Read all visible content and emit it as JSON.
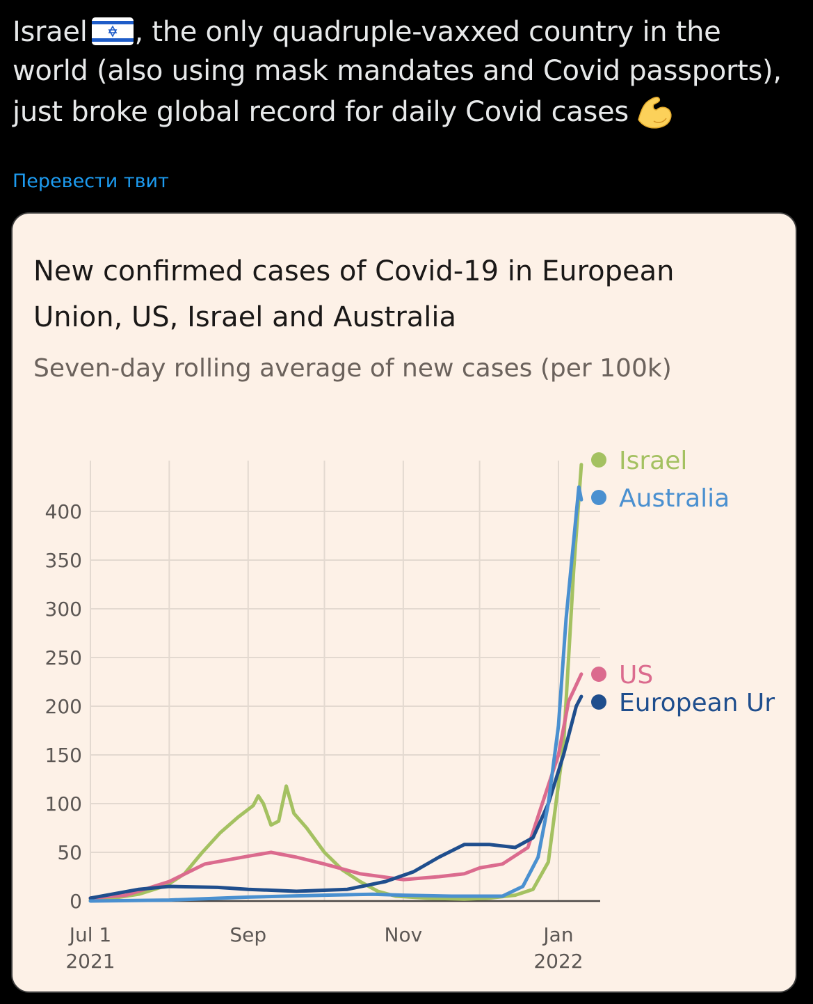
{
  "tweet": {
    "text_part1": "Israel",
    "flag_icon": "israel-flag-icon",
    "text_part2": ", the only quadruple-vaxxed country in the world (also using mask mandates and Covid passports), just broke global record for daily Covid cases",
    "emoji_icon": "flexed-biceps-icon",
    "translate_label": "Перевести твит"
  },
  "chart_data": {
    "type": "line",
    "title_line1": "New confirmed cases of Covid-19 in European",
    "title_line2": "Union, US, Israel and Australia",
    "subtitle": "Seven-day rolling average of new cases (per 100k)",
    "ylim": [
      0,
      450
    ],
    "yticks": [
      "400",
      "350",
      "300",
      "250",
      "200",
      "150",
      "100",
      "50",
      "0"
    ],
    "xticks": [
      {
        "label": "Jul 1",
        "label2": "2021",
        "x": "2021-07-01"
      },
      {
        "label": "Sep",
        "label2": "",
        "x": "2021-09-01"
      },
      {
        "label": "Nov",
        "label2": "",
        "x": "2021-11-01"
      },
      {
        "label": "Jan",
        "label2": "2022",
        "x": "2022-01-01"
      }
    ],
    "grid": true,
    "colors": {
      "Israel": "#a4c161",
      "Australia": "#4a90d0",
      "US": "#db6b8e",
      "European Union": "#1f4e8d"
    },
    "series": [
      {
        "name": "Israel",
        "label": "Israel",
        "color": "#a4c161",
        "points": [
          [
            "2021-07-01",
            1
          ],
          [
            "2021-07-10",
            3
          ],
          [
            "2021-07-20",
            7
          ],
          [
            "2021-07-31",
            16
          ],
          [
            "2021-08-07",
            28
          ],
          [
            "2021-08-14",
            50
          ],
          [
            "2021-08-21",
            70
          ],
          [
            "2021-08-28",
            86
          ],
          [
            "2021-09-03",
            98
          ],
          [
            "2021-09-05",
            108
          ],
          [
            "2021-09-07",
            100
          ],
          [
            "2021-09-10",
            78
          ],
          [
            "2021-09-13",
            82
          ],
          [
            "2021-09-16",
            118
          ],
          [
            "2021-09-19",
            90
          ],
          [
            "2021-09-24",
            75
          ],
          [
            "2021-10-01",
            50
          ],
          [
            "2021-10-08",
            32
          ],
          [
            "2021-10-15",
            20
          ],
          [
            "2021-10-22",
            10
          ],
          [
            "2021-10-29",
            5
          ],
          [
            "2021-11-10",
            3
          ],
          [
            "2021-11-25",
            2
          ],
          [
            "2021-12-05",
            3
          ],
          [
            "2021-12-15",
            6
          ],
          [
            "2021-12-22",
            12
          ],
          [
            "2021-12-28",
            40
          ],
          [
            "2022-01-03",
            160
          ],
          [
            "2022-01-07",
            340
          ],
          [
            "2022-01-10",
            448
          ]
        ]
      },
      {
        "name": "Australia",
        "label": "Australia",
        "color": "#4a90d0",
        "points": [
          [
            "2021-07-01",
            0
          ],
          [
            "2021-08-01",
            1
          ],
          [
            "2021-09-01",
            4
          ],
          [
            "2021-10-01",
            6
          ],
          [
            "2021-10-20",
            7
          ],
          [
            "2021-11-01",
            6
          ],
          [
            "2021-11-20",
            5
          ],
          [
            "2021-12-10",
            5
          ],
          [
            "2021-12-18",
            15
          ],
          [
            "2021-12-24",
            45
          ],
          [
            "2021-12-28",
            100
          ],
          [
            "2022-01-01",
            180
          ],
          [
            "2022-01-04",
            290
          ],
          [
            "2022-01-07",
            370
          ],
          [
            "2022-01-09",
            425
          ],
          [
            "2022-01-10",
            412
          ]
        ]
      },
      {
        "name": "US",
        "label": "US",
        "color": "#db6b8e",
        "points": [
          [
            "2021-07-01",
            3
          ],
          [
            "2021-07-15",
            6
          ],
          [
            "2021-08-01",
            20
          ],
          [
            "2021-08-15",
            38
          ],
          [
            "2021-09-01",
            46
          ],
          [
            "2021-09-10",
            50
          ],
          [
            "2021-09-20",
            45
          ],
          [
            "2021-10-01",
            38
          ],
          [
            "2021-10-15",
            28
          ],
          [
            "2021-11-01",
            22
          ],
          [
            "2021-11-15",
            25
          ],
          [
            "2021-11-25",
            28
          ],
          [
            "2021-12-01",
            34
          ],
          [
            "2021-12-10",
            38
          ],
          [
            "2021-12-20",
            55
          ],
          [
            "2021-12-25",
            95
          ],
          [
            "2022-01-01",
            150
          ],
          [
            "2022-01-05",
            205
          ],
          [
            "2022-01-10",
            233
          ]
        ]
      },
      {
        "name": "European Union",
        "label": "European Ur",
        "color": "#1f4e8d",
        "points": [
          [
            "2021-07-01",
            3
          ],
          [
            "2021-07-20",
            12
          ],
          [
            "2021-08-01",
            15
          ],
          [
            "2021-08-20",
            14
          ],
          [
            "2021-09-01",
            12
          ],
          [
            "2021-09-20",
            10
          ],
          [
            "2021-10-10",
            12
          ],
          [
            "2021-10-25",
            20
          ],
          [
            "2021-11-05",
            30
          ],
          [
            "2021-11-15",
            45
          ],
          [
            "2021-11-25",
            58
          ],
          [
            "2021-12-05",
            58
          ],
          [
            "2021-12-15",
            55
          ],
          [
            "2021-12-22",
            65
          ],
          [
            "2021-12-28",
            100
          ],
          [
            "2022-01-03",
            150
          ],
          [
            "2022-01-08",
            200
          ],
          [
            "2022-01-10",
            210
          ]
        ]
      }
    ]
  }
}
